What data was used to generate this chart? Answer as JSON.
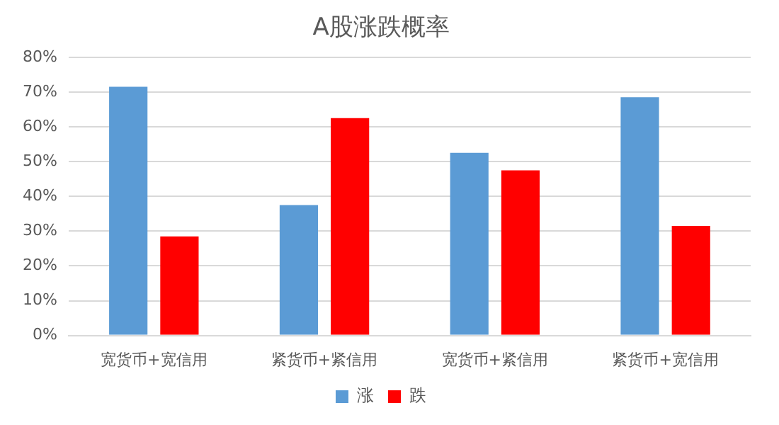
{
  "chart_data": {
    "type": "bar",
    "title": "A股涨跌概率",
    "categories": [
      "宽货币+宽信用",
      "紧货币+紧信用",
      "宽货币+紧信用",
      "紧货币+宽信用"
    ],
    "series": [
      {
        "name": "涨",
        "color": "#5b9bd5",
        "values": [
          71.5,
          37.5,
          52.5,
          68.5
        ]
      },
      {
        "name": "跌",
        "color": "#ff0000",
        "values": [
          28.5,
          62.5,
          47.5,
          31.5
        ]
      }
    ],
    "ylim": [
      0,
      80
    ],
    "yticks": [
      {
        "value": 0,
        "label": "0%"
      },
      {
        "value": 10,
        "label": "10%"
      },
      {
        "value": 20,
        "label": "20%"
      },
      {
        "value": 30,
        "label": "30%"
      },
      {
        "value": 40,
        "label": "40%"
      },
      {
        "value": 50,
        "label": "50%"
      },
      {
        "value": 60,
        "label": "60%"
      },
      {
        "value": 70,
        "label": "70%"
      },
      {
        "value": 80,
        "label": "80%"
      }
    ],
    "grid": "y",
    "legend": "bottom"
  }
}
